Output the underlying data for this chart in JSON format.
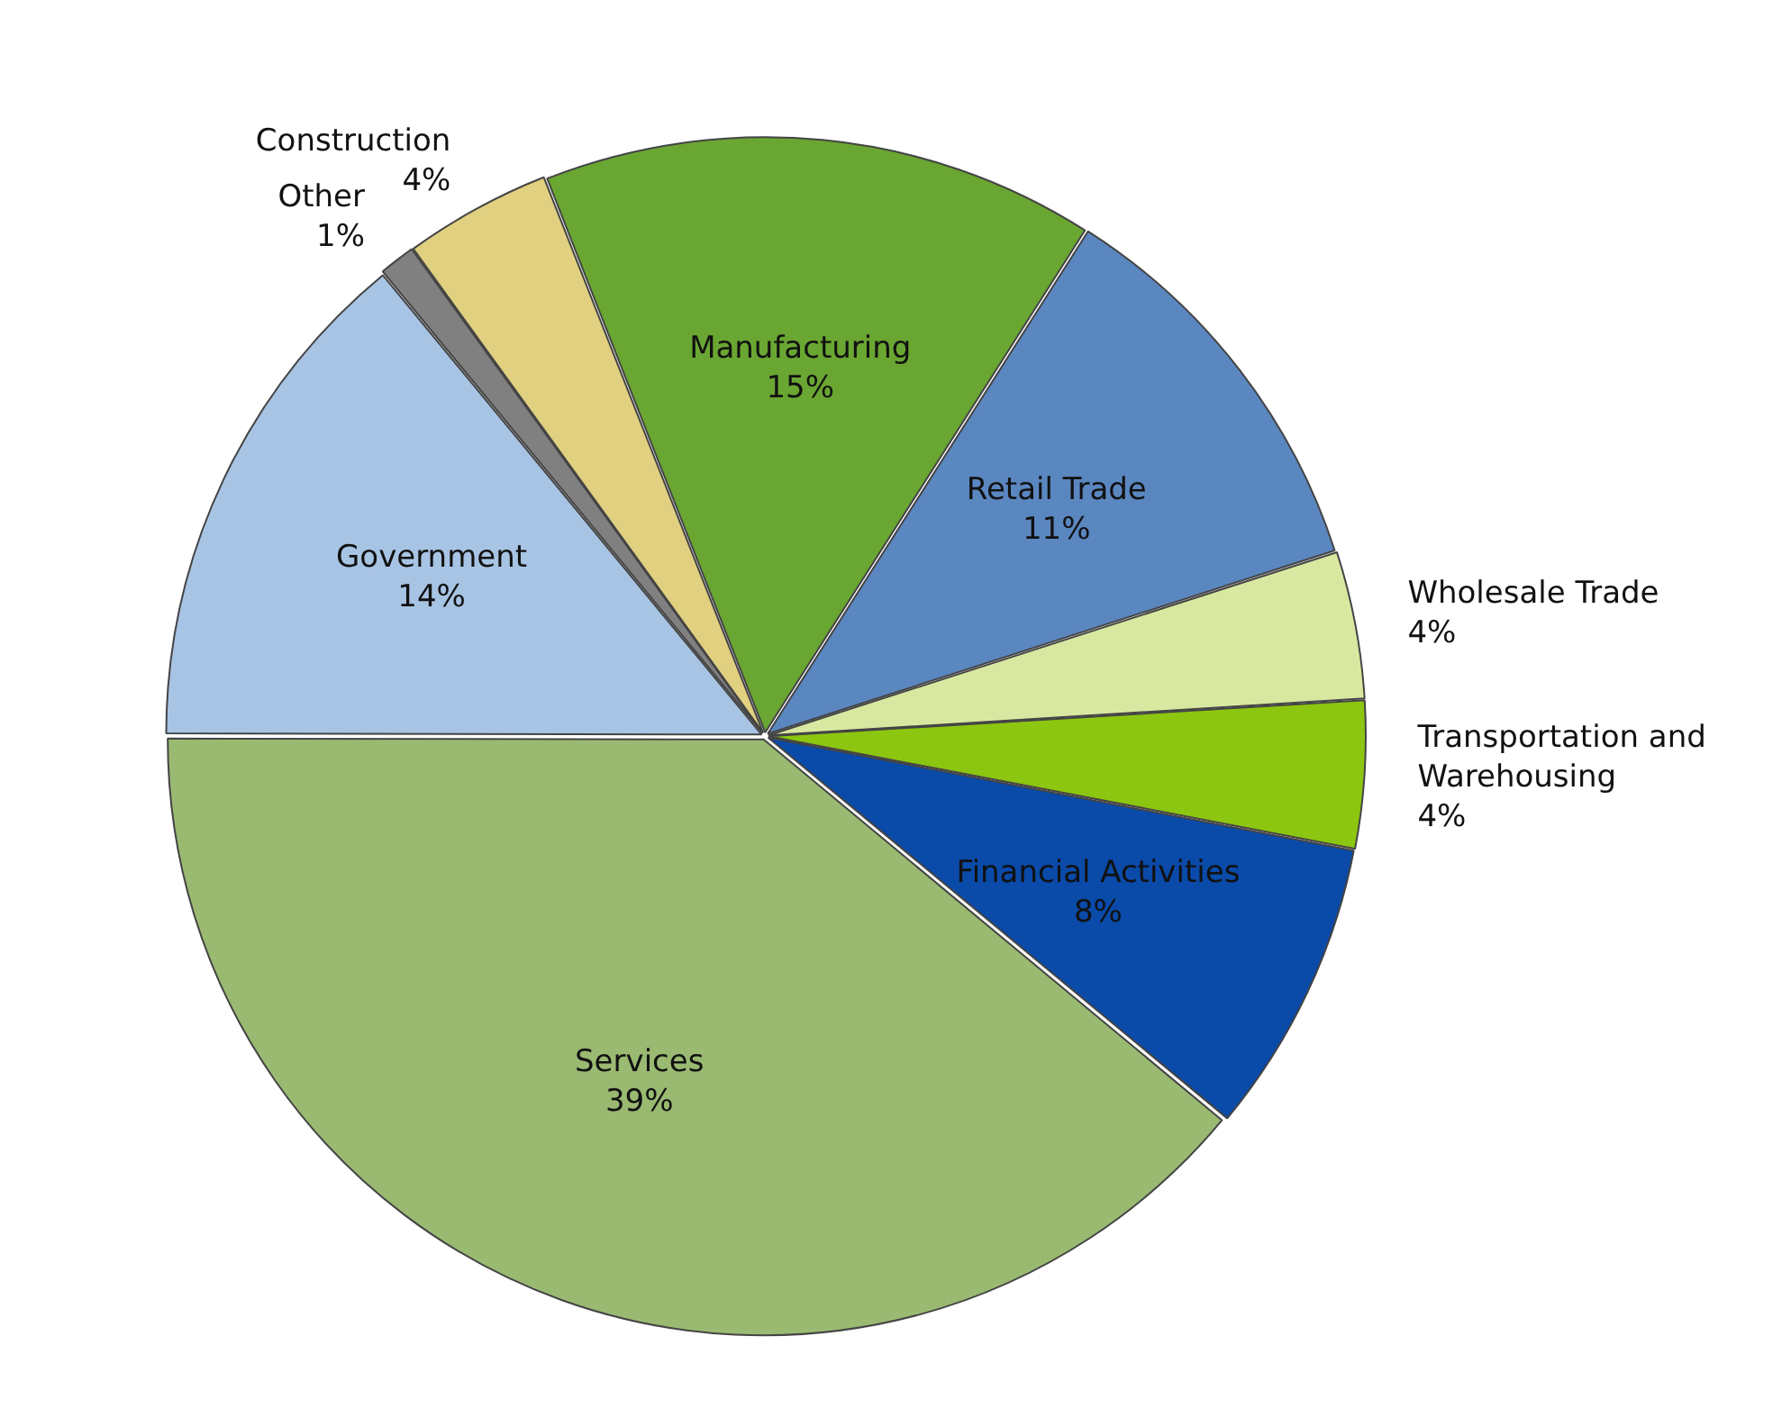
{
  "chart_data": {
    "type": "pie",
    "categories": [
      "Manufacturing",
      "Retail Trade",
      "Wholesale Trade",
      "Transportation and Warehousing",
      "Financial Activities",
      "Services",
      "Government",
      "Other",
      "Construction"
    ],
    "values": [
      15,
      11,
      4,
      4,
      8,
      39,
      14,
      1,
      4
    ],
    "colors": [
      "#6aa632",
      "#5b87c0",
      "#d8e8a0",
      "#8cc610",
      "#0a4aa8",
      "#9aba72",
      "#a8c4e4",
      "#808080",
      "#e0d080"
    ],
    "value_labels": [
      "15%",
      "11%",
      "4%",
      "4%",
      "8%",
      "39%",
      "14%",
      "1%",
      "4%"
    ],
    "legend": false
  }
}
